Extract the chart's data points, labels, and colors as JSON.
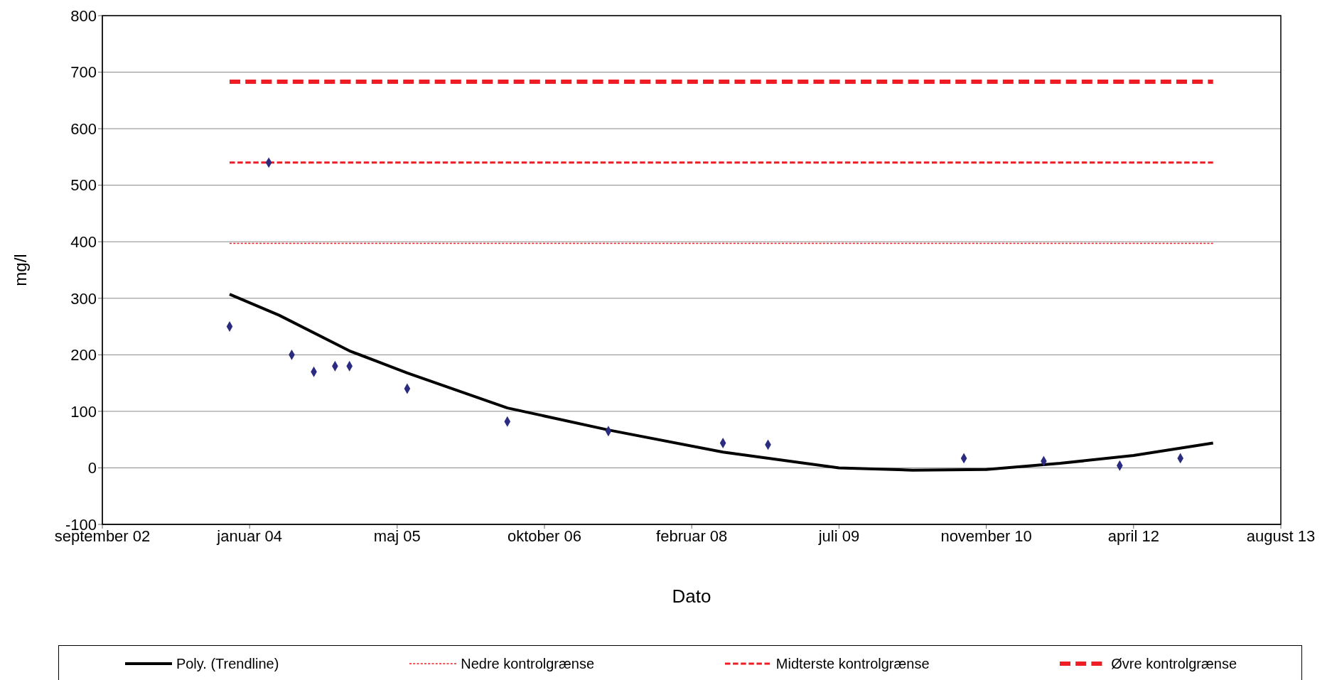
{
  "chart_data": {
    "type": "scatter",
    "xlabel": "Dato",
    "ylabel": "mg/l",
    "ylim": [
      -100,
      800
    ],
    "yticks": [
      -100,
      0,
      100,
      200,
      300,
      400,
      500,
      600,
      700,
      800
    ],
    "xlim": [
      "2002-09-01",
      "2013-08-15"
    ],
    "xticks": [
      {
        "value": "2002-09-01",
        "label": "september 02"
      },
      {
        "value": "2004-01-14",
        "label": "januar 04"
      },
      {
        "value": "2005-05-29",
        "label": "maj 05"
      },
      {
        "value": "2006-10-11",
        "label": "oktober 06"
      },
      {
        "value": "2008-02-23",
        "label": "februar 08"
      },
      {
        "value": "2009-07-07",
        "label": "juli 09"
      },
      {
        "value": "2010-11-19",
        "label": "november 10"
      },
      {
        "value": "2012-04-02",
        "label": "april 12"
      },
      {
        "value": "2013-08-15",
        "label": "august 13"
      }
    ],
    "grid": "y",
    "legend": "bottom",
    "series": [
      {
        "marker": "diamond",
        "color": "#2b2b7f",
        "x": [
          "2003-11-07",
          "2004-03-19",
          "2004-06-05",
          "2004-08-19",
          "2004-10-30",
          "2004-12-18",
          "2005-07-02",
          "2006-06-07",
          "2007-05-16",
          "2008-06-08",
          "2008-11-08",
          "2010-09-04",
          "2011-06-02",
          "2012-02-15",
          "2012-09-08"
        ],
        "values": [
          250,
          540,
          200,
          170,
          180,
          180,
          140,
          82,
          65,
          44,
          41,
          17,
          12,
          4,
          17
        ]
      },
      {
        "type": "line",
        "name": "Poly. (Trendline)",
        "color": "#000000",
        "marker": "none",
        "line_style": "solid",
        "x": [
          "2003-11-07",
          "2004-04-23",
          "2004-12-18",
          "2005-07-02",
          "2006-06-07",
          "2007-05-16",
          "2008-06-08",
          "2009-07-07",
          "2010-03-14",
          "2010-11-19",
          "2011-07-28",
          "2012-04-02",
          "2012-12-28"
        ],
        "values": [
          307,
          270,
          207,
          168,
          106,
          67,
          28,
          0,
          -4,
          -3,
          8,
          22,
          44
        ]
      },
      {
        "type": "line",
        "name": "Nedre kontrolgrænse",
        "color": "#ee1c24",
        "marker": "none",
        "line_style": "dotted",
        "x": [
          "2003-11-07",
          "2012-12-28"
        ],
        "values": [
          397,
          397
        ]
      },
      {
        "type": "line",
        "name": "Midterste kontrolgrænse",
        "color": "#ee1c24",
        "marker": "none",
        "line_style": "dashed",
        "x": [
          "2003-11-07",
          "2012-12-28"
        ],
        "values": [
          540,
          540
        ]
      },
      {
        "type": "line",
        "name": "Øvre kontrolgrænse",
        "color": "#ee1c24",
        "marker": "none",
        "line_style": "dashed",
        "x": [
          "2003-11-07",
          "2012-12-28"
        ],
        "values": [
          683,
          683
        ]
      }
    ]
  }
}
